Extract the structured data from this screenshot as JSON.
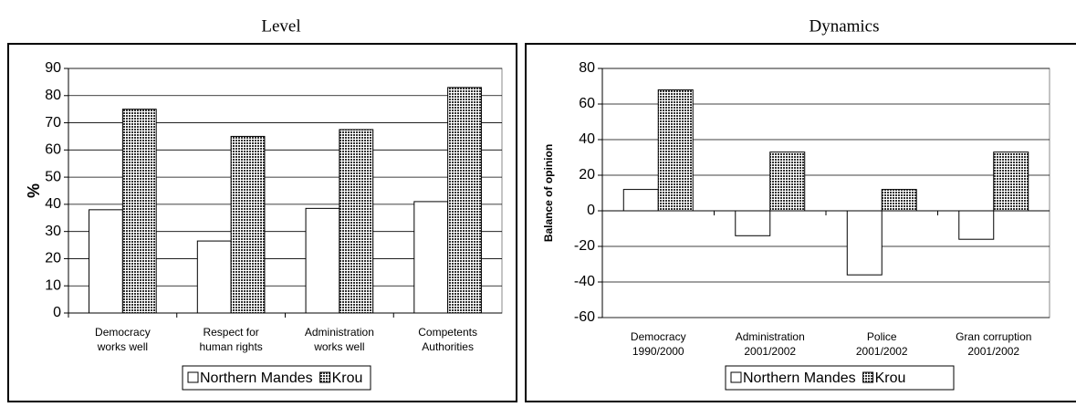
{
  "chart_data": [
    {
      "type": "bar",
      "title": "Level",
      "y_label": "%",
      "categories": [
        [
          "Democracy",
          "works well"
        ],
        [
          "Respect for",
          "human rights"
        ],
        [
          "Administration",
          "works well"
        ],
        [
          "Competents",
          "Authorities"
        ]
      ],
      "series": [
        {
          "name": "Northern Mandes",
          "color": "#ffffff",
          "values": [
            38,
            26.5,
            38.5,
            41
          ]
        },
        {
          "name": "Krou",
          "color": "#333333",
          "values": [
            75,
            65,
            67.5,
            83
          ]
        }
      ],
      "ylim": [
        0,
        90
      ],
      "yticks": [
        0,
        10,
        20,
        30,
        40,
        50,
        60,
        70,
        80,
        90
      ],
      "grid": true,
      "legend": "bottom"
    },
    {
      "type": "bar",
      "title": "Dynamics",
      "y_label": "Balance of opinion",
      "categories": [
        [
          "Democracy",
          "1990/2000"
        ],
        [
          "Administration",
          "2001/2002"
        ],
        [
          "Police",
          "2001/2002"
        ],
        [
          "Gran corruption",
          "2001/2002"
        ]
      ],
      "series": [
        {
          "name": "Northern Mandes",
          "color": "#ffffff",
          "values": [
            12,
            -14,
            -36,
            -16
          ]
        },
        {
          "name": "Krou",
          "color": "#333333",
          "values": [
            68,
            33,
            12,
            33
          ]
        }
      ],
      "ylim": [
        -60,
        80
      ],
      "yticks": [
        -60,
        -40,
        -20,
        0,
        20,
        40,
        60,
        80
      ],
      "grid": true,
      "legend": "bottom"
    }
  ]
}
